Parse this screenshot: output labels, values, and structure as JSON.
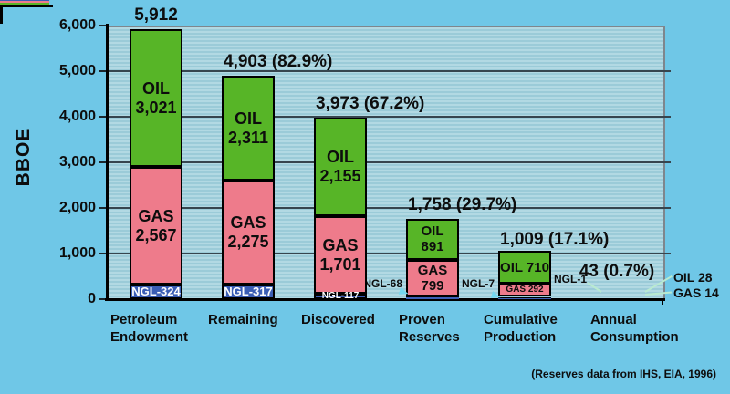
{
  "chart_data": {
    "type": "bar",
    "stacked": true,
    "ylabel": "BBOE",
    "ylim": [
      0,
      6000
    ],
    "ytick_step": 1000,
    "ytick_labels": [
      "0",
      "1,000",
      "2,000",
      "3,000",
      "4,000",
      "5,000",
      "6,000"
    ],
    "grid": "horizontal",
    "legend_position": "none",
    "series_order_bottom_to_top": [
      "NGL",
      "GAS",
      "OIL"
    ],
    "series": [
      {
        "name": "NGL",
        "color": "#3b5eb5",
        "values": [
          324,
          317,
          117,
          68,
          7,
          1
        ]
      },
      {
        "name": "GAS",
        "color": "#ee7b8b",
        "values": [
          2567,
          2275,
          1701,
          799,
          292,
          14
        ]
      },
      {
        "name": "OIL",
        "color": "#57b527",
        "values": [
          3021,
          2311,
          2155,
          891,
          710,
          28
        ]
      }
    ],
    "bars": [
      {
        "category": "Petroleum Endowment",
        "category_lines": "Petroleum\nEndowment",
        "total": 5912,
        "total_label": "5,912",
        "oil_label": "OIL\n3,021",
        "gas_label": "GAS\n2,567",
        "ngl_label": "NGL-324",
        "ngl_label_placement": "inside"
      },
      {
        "category": "Remaining",
        "category_lines": "Remaining",
        "total": 4903,
        "total_label": "4,903 (82.9%)",
        "oil_label": "OIL\n2,311",
        "gas_label": "GAS\n2,275",
        "ngl_label": "NGL-317",
        "ngl_label_placement": "inside"
      },
      {
        "category": "Discovered",
        "category_lines": "Discovered",
        "total": 3973,
        "total_label": "3,973 (67.2%)",
        "oil_label": "OIL\n2,155",
        "gas_label": "GAS\n1,701",
        "ngl_label": "NGL-117",
        "ngl_label_placement": "inside"
      },
      {
        "category": "Proven Reserves",
        "category_lines": "Proven\nReserves",
        "total": 1758,
        "total_label": "1,758 (29.7%)",
        "oil_label": "OIL\n891",
        "gas_label": "GAS\n799",
        "ngl_label": "NGL-68",
        "ngl_label_placement": "outside-left"
      },
      {
        "category": "Cumulative Production",
        "category_lines": "Cumulative\nProduction",
        "total": 1009,
        "total_label": "1,009 (17.1%)",
        "oil_label": "OIL 710",
        "gas_label": "GAS 292",
        "ngl_label": "NGL-7",
        "ngl_label_placement": "outside-left"
      },
      {
        "category": "Annual Consumption",
        "category_lines": "Annual\nConsumption",
        "total": 43,
        "total_label": "43 (0.7%)",
        "oil_label": "",
        "gas_label": "",
        "ngl_label": "NGL-1",
        "ngl_label_placement": "outside-left"
      }
    ]
  },
  "annotations": {
    "right_oil_label": "OIL 28",
    "right_gas_label": "GAS 14",
    "source_note": "(Reserves data from IHS, EIA, 1996)"
  },
  "colors": {
    "background": "#6fc7e7",
    "oil": "#57b527",
    "gas": "#ee7b8b",
    "ngl": "#3b5eb5",
    "gridline": "#36454e",
    "plot_border": "#7e868d"
  }
}
